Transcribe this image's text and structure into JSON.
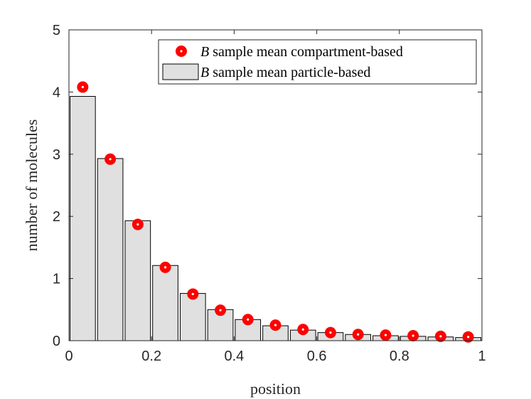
{
  "chart_data": {
    "type": "bar",
    "xlabel": "position",
    "ylabel": "number of molecules",
    "xlim": [
      0,
      1
    ],
    "ylim": [
      0,
      5
    ],
    "xticks": [
      "0",
      "0.2",
      "0.4",
      "0.6",
      "0.8",
      "1"
    ],
    "yticks": [
      "0",
      "1",
      "2",
      "3",
      "4",
      "5"
    ],
    "legend_position": "top-right",
    "bin_width": 0.0667,
    "x": [
      0.0333,
      0.1,
      0.1667,
      0.2333,
      0.3,
      0.3667,
      0.4333,
      0.5,
      0.5667,
      0.6333,
      0.7,
      0.7667,
      0.8333,
      0.9,
      0.9667
    ],
    "series": [
      {
        "name": "B sample mean particle-based",
        "kind": "bar",
        "color": "#e0e0e0",
        "edge_color": "#000000",
        "values": [
          3.93,
          2.93,
          1.93,
          1.21,
          0.76,
          0.5,
          0.34,
          0.24,
          0.17,
          0.13,
          0.1,
          0.08,
          0.07,
          0.06,
          0.05
        ]
      },
      {
        "name": "B sample mean compartment-based",
        "kind": "marker",
        "color": "#ff0000",
        "values": [
          4.08,
          2.92,
          1.87,
          1.18,
          0.75,
          0.49,
          0.34,
          0.25,
          0.18,
          0.13,
          0.1,
          0.09,
          0.08,
          0.07,
          0.06
        ]
      }
    ]
  },
  "legend": {
    "var": "B",
    "entries": [
      {
        "rest": " sample mean compartment-based"
      },
      {
        "rest": " sample mean particle-based"
      }
    ]
  }
}
